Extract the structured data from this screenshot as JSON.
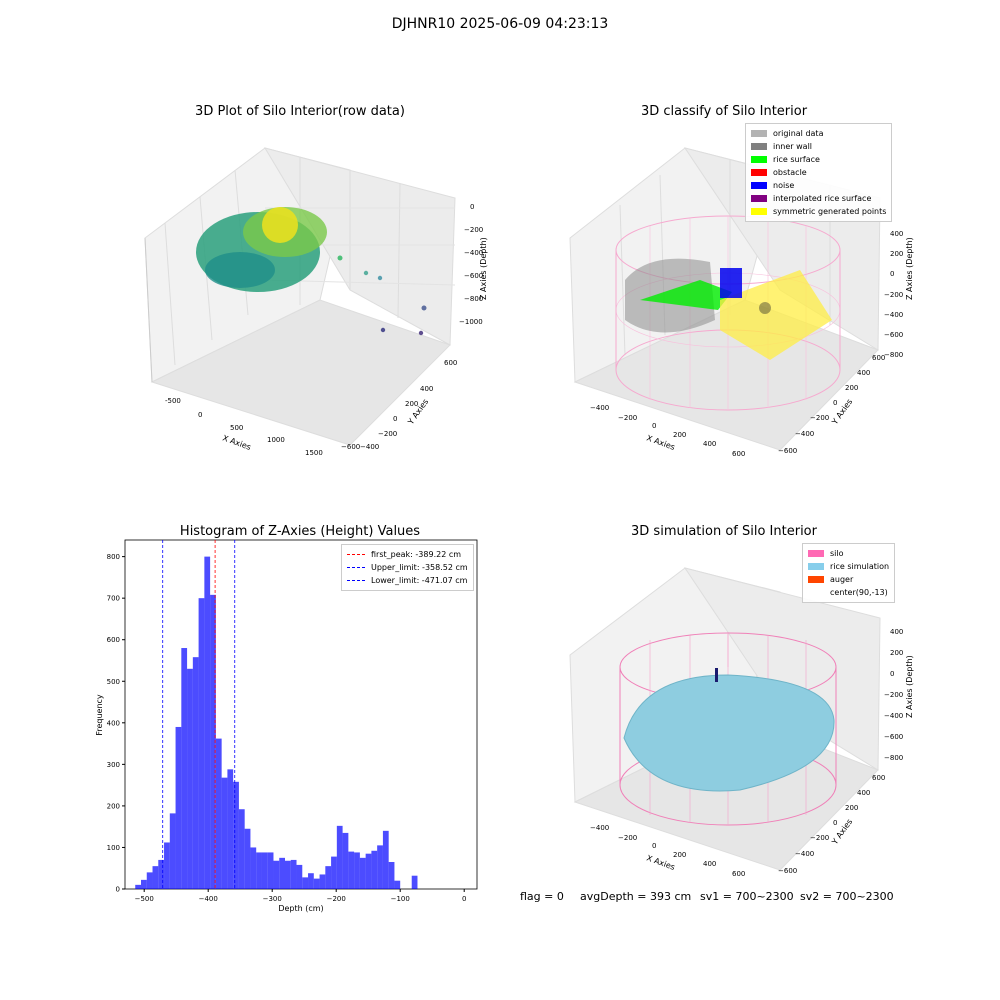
{
  "suptitle": "DJHNR10 2025-06-09 04:23:13",
  "panels": {
    "raw": {
      "title": "3D Plot of Silo Interior(row data)",
      "xlabel": "X Axies",
      "ylabel": "Y Axies",
      "zlabel": "Z Axies (Depth)",
      "xticks": [
        "-500",
        "0",
        "500",
        "1000",
        "1500"
      ],
      "yticks": [
        "600",
        "400",
        "200",
        "0",
        "−200",
        "−400",
        "−600"
      ],
      "zticks": [
        "0",
        "−200",
        "−400",
        "−600",
        "−800",
        "−1000"
      ]
    },
    "classify": {
      "title": "3D classify of Silo Interior",
      "xlabel": "X Axies",
      "ylabel": "Y Axies",
      "zlabel": "Z Axies (Depth)",
      "xticks": [
        "−400",
        "−200",
        "0",
        "200",
        "400",
        "600"
      ],
      "yticks": [
        "600",
        "400",
        "200",
        "0",
        "−200",
        "−400",
        "−600"
      ],
      "zticks": [
        "400",
        "200",
        "0",
        "−200",
        "−400",
        "−600",
        "−800"
      ],
      "legend": [
        {
          "label": "original data",
          "color": "#b3b3b3"
        },
        {
          "label": "inner wall",
          "color": "#808080"
        },
        {
          "label": "rice surface",
          "color": "#00ff00"
        },
        {
          "label": "obstacle",
          "color": "#ff0000"
        },
        {
          "label": "noise",
          "color": "#0000ff"
        },
        {
          "label": "interpolated rice surface",
          "color": "#800080"
        },
        {
          "label": "symmetric generated points",
          "color": "#ffff00"
        }
      ]
    },
    "sim": {
      "title": "3D simulation of Silo Interior",
      "xlabel": "X Axies",
      "ylabel": "Y Axies",
      "zlabel": "Z Axies (Depth)",
      "xticks": [
        "−400",
        "−200",
        "0",
        "200",
        "400",
        "600"
      ],
      "yticks": [
        "600",
        "400",
        "200",
        "0",
        "−200",
        "−400",
        "−600"
      ],
      "zticks": [
        "400",
        "200",
        "0",
        "−200",
        "−400",
        "−600",
        "−800"
      ],
      "legend": [
        {
          "label": "silo",
          "color": "#ff69b4"
        },
        {
          "label": "rice simulation",
          "color": "#87ceeb"
        },
        {
          "label": "auger",
          "color": "#ff4500"
        },
        {
          "label": "center(90,-13)",
          "color": "#ffffff"
        }
      ]
    }
  },
  "chart_data": {
    "type": "bar",
    "title": "Histogram of Z-Axies (Height) Values",
    "xlabel": "Depth (cm)",
    "ylabel": "Frequency",
    "xlim": [
      -530,
      20
    ],
    "ylim": [
      0,
      840
    ],
    "bar_color": "#0000ff",
    "xticks": [
      -500,
      -400,
      -300,
      -200,
      -100,
      0
    ],
    "xtick_labels": [
      "−500",
      "−400",
      "−300",
      "−200",
      "−100",
      "0"
    ],
    "yticks": [
      0,
      100,
      200,
      300,
      400,
      500,
      600,
      700,
      800
    ],
    "bin_width": 9.0,
    "bin_starts": [
      -514,
      -505,
      -496,
      -487,
      -478,
      -469,
      -460,
      -451,
      -442,
      -433,
      -424,
      -415,
      -406,
      -397,
      -388,
      -379,
      -370,
      -361,
      -352,
      -343,
      -334,
      -325,
      -316,
      -307,
      -298,
      -289,
      -280,
      -271,
      -262,
      -253,
      -244,
      -235,
      -226,
      -217,
      -208,
      -199,
      -190,
      -181,
      -172,
      -163,
      -154,
      -145,
      -136,
      -127,
      -118,
      -109,
      -100,
      -91,
      -82,
      -73,
      -64,
      -55,
      -46,
      -37,
      -28,
      -19,
      -10,
      -1
    ],
    "values": [
      10,
      22,
      40,
      55,
      70,
      112,
      182,
      390,
      580,
      530,
      558,
      700,
      800,
      708,
      362,
      268,
      288,
      258,
      192,
      145,
      100,
      88,
      88,
      88,
      68,
      75,
      68,
      70,
      58,
      28,
      38,
      25,
      35,
      55,
      78,
      152,
      135,
      90,
      88,
      75,
      85,
      92,
      105,
      140,
      65,
      20,
      0,
      0,
      32,
      0,
      0,
      0,
      0,
      0,
      0,
      0,
      0,
      0
    ],
    "vlines": [
      {
        "label": "first_peak: -389.22 cm",
        "x": -389.22,
        "color": "#ff0000"
      },
      {
        "label": "Upper_limit: -358.52 cm",
        "x": -358.52,
        "color": "#0000ff"
      },
      {
        "label": "Lower_limit: -471.07 cm",
        "x": -471.07,
        "color": "#0000ff"
      }
    ]
  },
  "status": {
    "flag": "flag = 0",
    "avg_depth": "avgDepth = 393 cm",
    "sv1": "sv1 = 700~2300",
    "sv2": "sv2 = 700~2300"
  }
}
